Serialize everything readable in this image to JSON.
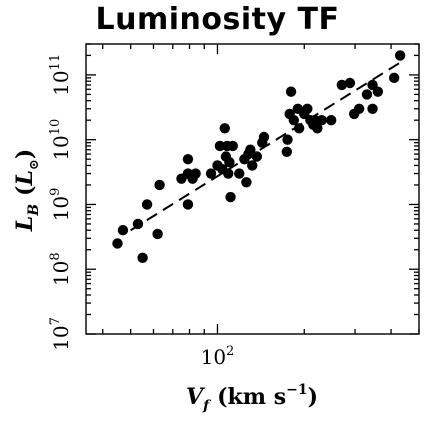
{
  "chart_data": {
    "type": "scatter",
    "title": "Luminosity TF",
    "xlabel": {
      "sym": "V",
      "sub": "f",
      "units": "(km s",
      "exp": "−1",
      "close": ")"
    },
    "ylabel": {
      "sym": "L",
      "sub": "B",
      "open": "(",
      "units_sym": "L",
      "sun": "⊙",
      "close": ")"
    },
    "x_scale": "log",
    "y_scale": "log",
    "xlim": [
      35,
      500
    ],
    "ylim": [
      10000000.0,
      300000000000.0
    ],
    "y_ticks": [
      {
        "value": 10000000.0,
        "base": "10",
        "exp": "7"
      },
      {
        "value": 100000000.0,
        "base": "10",
        "exp": "8"
      },
      {
        "value": 1000000000.0,
        "base": "10",
        "exp": "9"
      },
      {
        "value": 10000000000.0,
        "base": "10",
        "exp": "10"
      },
      {
        "value": 100000000000.0,
        "base": "10",
        "exp": "11"
      }
    ],
    "x_ticks": [
      {
        "value": 100,
        "base": "10",
        "exp": "2"
      }
    ],
    "fit_line": {
      "style": "dashed",
      "x": [
        50,
        430
      ],
      "y": [
        400000000.0,
        155000000000.0
      ]
    },
    "points": [
      {
        "x": 45,
        "y": 250000000.0
      },
      {
        "x": 47,
        "y": 400000000.0
      },
      {
        "x": 53,
        "y": 500000000.0
      },
      {
        "x": 55,
        "y": 150000000.0
      },
      {
        "x": 57,
        "y": 1000000000.0
      },
      {
        "x": 62,
        "y": 350000000.0
      },
      {
        "x": 63,
        "y": 2000000000.0
      },
      {
        "x": 75,
        "y": 2500000000.0
      },
      {
        "x": 79,
        "y": 3000000000.0
      },
      {
        "x": 79,
        "y": 5000000000.0
      },
      {
        "x": 79,
        "y": 1000000000.0
      },
      {
        "x": 82,
        "y": 2500000000.0
      },
      {
        "x": 84,
        "y": 3000000000.0
      },
      {
        "x": 95,
        "y": 3000000000.0
      },
      {
        "x": 100,
        "y": 4000000000.0
      },
      {
        "x": 102,
        "y": 8000000000.0
      },
      {
        "x": 104,
        "y": 3500000000.0
      },
      {
        "x": 106,
        "y": 15000000000.0
      },
      {
        "x": 107,
        "y": 5500000000.0
      },
      {
        "x": 108,
        "y": 8000000000.0
      },
      {
        "x": 109,
        "y": 3000000000.0
      },
      {
        "x": 110,
        "y": 4500000000.0
      },
      {
        "x": 111,
        "y": 1300000000.0
      },
      {
        "x": 113,
        "y": 8000000000.0
      },
      {
        "x": 119,
        "y": 3000000000.0
      },
      {
        "x": 124,
        "y": 5000000000.0
      },
      {
        "x": 126,
        "y": 2200000000.0
      },
      {
        "x": 128,
        "y": 6000000000.0
      },
      {
        "x": 130,
        "y": 7000000000.0
      },
      {
        "x": 132,
        "y": 4000000000.0
      },
      {
        "x": 137,
        "y": 5500000000.0
      },
      {
        "x": 143,
        "y": 9000000000.0
      },
      {
        "x": 145,
        "y": 11000000000.0
      },
      {
        "x": 174,
        "y": 6500000000.0
      },
      {
        "x": 175,
        "y": 10000000000.0
      },
      {
        "x": 178,
        "y": 25000000000.0
      },
      {
        "x": 180,
        "y": 55000000000.0
      },
      {
        "x": 184,
        "y": 20000000000.0
      },
      {
        "x": 190,
        "y": 30000000000.0
      },
      {
        "x": 192,
        "y": 15000000000.0
      },
      {
        "x": 200,
        "y": 25000000000.0
      },
      {
        "x": 205,
        "y": 30000000000.0
      },
      {
        "x": 210,
        "y": 20000000000.0
      },
      {
        "x": 215,
        "y": 17000000000.0
      },
      {
        "x": 218,
        "y": 20000000000.0
      },
      {
        "x": 222,
        "y": 15000000000.0
      },
      {
        "x": 230,
        "y": 20000000000.0
      },
      {
        "x": 248,
        "y": 20000000000.0
      },
      {
        "x": 270,
        "y": 70000000000.0
      },
      {
        "x": 288,
        "y": 75000000000.0
      },
      {
        "x": 298,
        "y": 25000000000.0
      },
      {
        "x": 310,
        "y": 30000000000.0
      },
      {
        "x": 330,
        "y": 50000000000.0
      },
      {
        "x": 345,
        "y": 70000000000.0
      },
      {
        "x": 360,
        "y": 55000000000.0
      },
      {
        "x": 345,
        "y": 30000000000.0
      },
      {
        "x": 410,
        "y": 90000000000.0
      },
      {
        "x": 430,
        "y": 200000000000.0
      }
    ],
    "grid": false,
    "legend": "none",
    "marker_color": "#000000"
  }
}
